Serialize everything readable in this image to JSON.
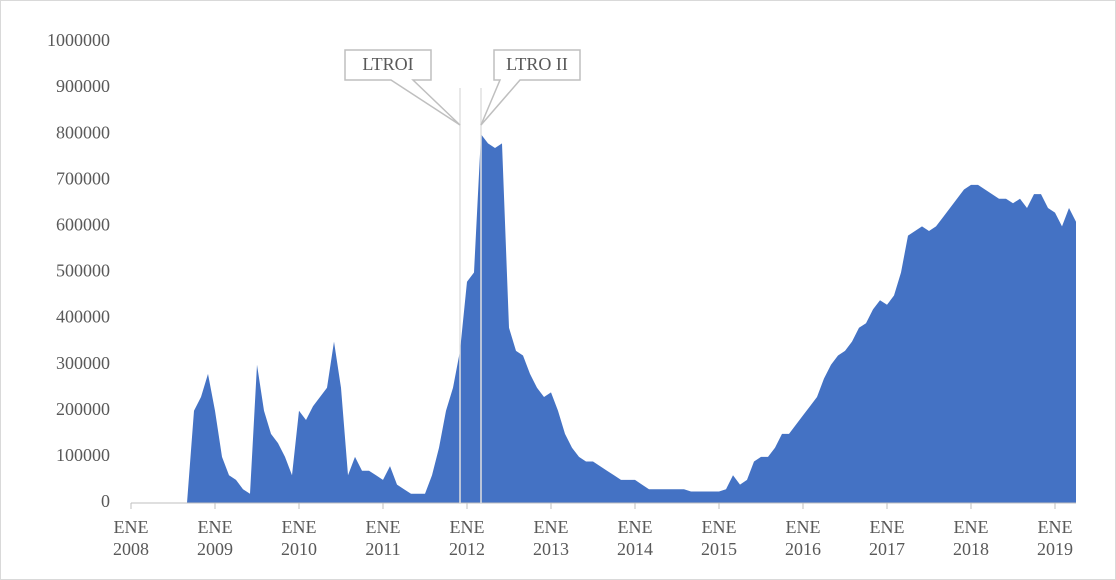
{
  "chart_data": {
    "type": "area",
    "color": "#4472c4",
    "x": [
      "2008-01",
      "2008-02",
      "2008-03",
      "2008-04",
      "2008-05",
      "2008-06",
      "2008-07",
      "2008-08",
      "2008-09",
      "2008-10",
      "2008-11",
      "2008-12",
      "2009-01",
      "2009-02",
      "2009-03",
      "2009-04",
      "2009-05",
      "2009-06",
      "2009-07",
      "2009-08",
      "2009-09",
      "2009-10",
      "2009-11",
      "2009-12",
      "2010-01",
      "2010-02",
      "2010-03",
      "2010-04",
      "2010-05",
      "2010-06",
      "2010-07",
      "2010-08",
      "2010-09",
      "2010-10",
      "2010-11",
      "2010-12",
      "2011-01",
      "2011-02",
      "2011-03",
      "2011-04",
      "2011-05",
      "2011-06",
      "2011-07",
      "2011-08",
      "2011-09",
      "2011-10",
      "2011-11",
      "2011-12",
      "2012-01",
      "2012-02",
      "2012-03",
      "2012-04",
      "2012-05",
      "2012-06",
      "2012-07",
      "2012-08",
      "2012-09",
      "2012-10",
      "2012-11",
      "2012-12",
      "2013-01",
      "2013-02",
      "2013-03",
      "2013-04",
      "2013-05",
      "2013-06",
      "2013-07",
      "2013-08",
      "2013-09",
      "2013-10",
      "2013-11",
      "2013-12",
      "2014-01",
      "2014-02",
      "2014-03",
      "2014-04",
      "2014-05",
      "2014-06",
      "2014-07",
      "2014-08",
      "2014-09",
      "2014-10",
      "2014-11",
      "2014-12",
      "2015-01",
      "2015-02",
      "2015-03",
      "2015-04",
      "2015-05",
      "2015-06",
      "2015-07",
      "2015-08",
      "2015-09",
      "2015-10",
      "2015-11",
      "2015-12",
      "2016-01",
      "2016-02",
      "2016-03",
      "2016-04",
      "2016-05",
      "2016-06",
      "2016-07",
      "2016-08",
      "2016-09",
      "2016-10",
      "2016-11",
      "2016-12",
      "2017-01",
      "2017-02",
      "2017-03",
      "2017-04",
      "2017-05",
      "2017-06",
      "2017-07",
      "2017-08",
      "2017-09",
      "2017-10",
      "2017-11",
      "2017-12",
      "2018-01",
      "2018-02",
      "2018-03",
      "2018-04",
      "2018-05",
      "2018-06",
      "2018-07",
      "2018-08",
      "2018-09",
      "2018-10",
      "2018-11",
      "2018-12",
      "2019-01",
      "2019-02",
      "2019-03",
      "2019-04"
    ],
    "values": [
      0,
      0,
      0,
      0,
      0,
      0,
      0,
      0,
      0,
      200000,
      230000,
      280000,
      200000,
      100000,
      60000,
      50000,
      30000,
      20000,
      300000,
      200000,
      150000,
      130000,
      100000,
      60000,
      200000,
      180000,
      210000,
      230000,
      250000,
      350000,
      250000,
      60000,
      100000,
      70000,
      70000,
      60000,
      50000,
      80000,
      40000,
      30000,
      20000,
      20000,
      20000,
      60000,
      120000,
      200000,
      250000,
      330000,
      480000,
      500000,
      800000,
      780000,
      770000,
      780000,
      380000,
      330000,
      320000,
      280000,
      250000,
      230000,
      240000,
      200000,
      150000,
      120000,
      100000,
      90000,
      90000,
      80000,
      70000,
      60000,
      50000,
      50000,
      50000,
      40000,
      30000,
      30000,
      30000,
      30000,
      30000,
      30000,
      25000,
      25000,
      25000,
      25000,
      25000,
      30000,
      60000,
      40000,
      50000,
      90000,
      100000,
      100000,
      120000,
      150000,
      150000,
      170000,
      190000,
      210000,
      230000,
      270000,
      300000,
      320000,
      330000,
      350000,
      380000,
      390000,
      420000,
      440000,
      430000,
      450000,
      500000,
      580000,
      590000,
      600000,
      590000,
      600000,
      620000,
      640000,
      660000,
      680000,
      690000,
      690000,
      680000,
      670000,
      660000,
      660000,
      650000,
      660000,
      640000,
      670000,
      670000,
      640000,
      630000,
      600000,
      640000,
      610000
    ],
    "xlim": [
      "2008-01",
      "2019-04"
    ],
    "xticks": [
      {
        "value": "2008-01",
        "label": "ENE 2008"
      },
      {
        "value": "2009-01",
        "label": "ENE 2009"
      },
      {
        "value": "2010-01",
        "label": "ENE 2010"
      },
      {
        "value": "2011-01",
        "label": "ENE 2011"
      },
      {
        "value": "2012-01",
        "label": "ENE 2012"
      },
      {
        "value": "2013-01",
        "label": "ENE 2013"
      },
      {
        "value": "2014-01",
        "label": "ENE 2014"
      },
      {
        "value": "2015-01",
        "label": "ENE 2015"
      },
      {
        "value": "2016-01",
        "label": "ENE 2016"
      },
      {
        "value": "2017-01",
        "label": "ENE 2017"
      },
      {
        "value": "2018-01",
        "label": "ENE 2018"
      },
      {
        "value": "2019-01",
        "label": "ENE 2019"
      }
    ],
    "ylim": [
      0,
      1000000
    ],
    "yticks": [
      0,
      100000,
      200000,
      300000,
      400000,
      500000,
      600000,
      700000,
      800000,
      900000,
      1000000
    ],
    "grid": false,
    "annotations": [
      {
        "text": "LTROI",
        "x": "2011-12"
      },
      {
        "text": "LTRO II",
        "x": "2012-03"
      }
    ]
  }
}
